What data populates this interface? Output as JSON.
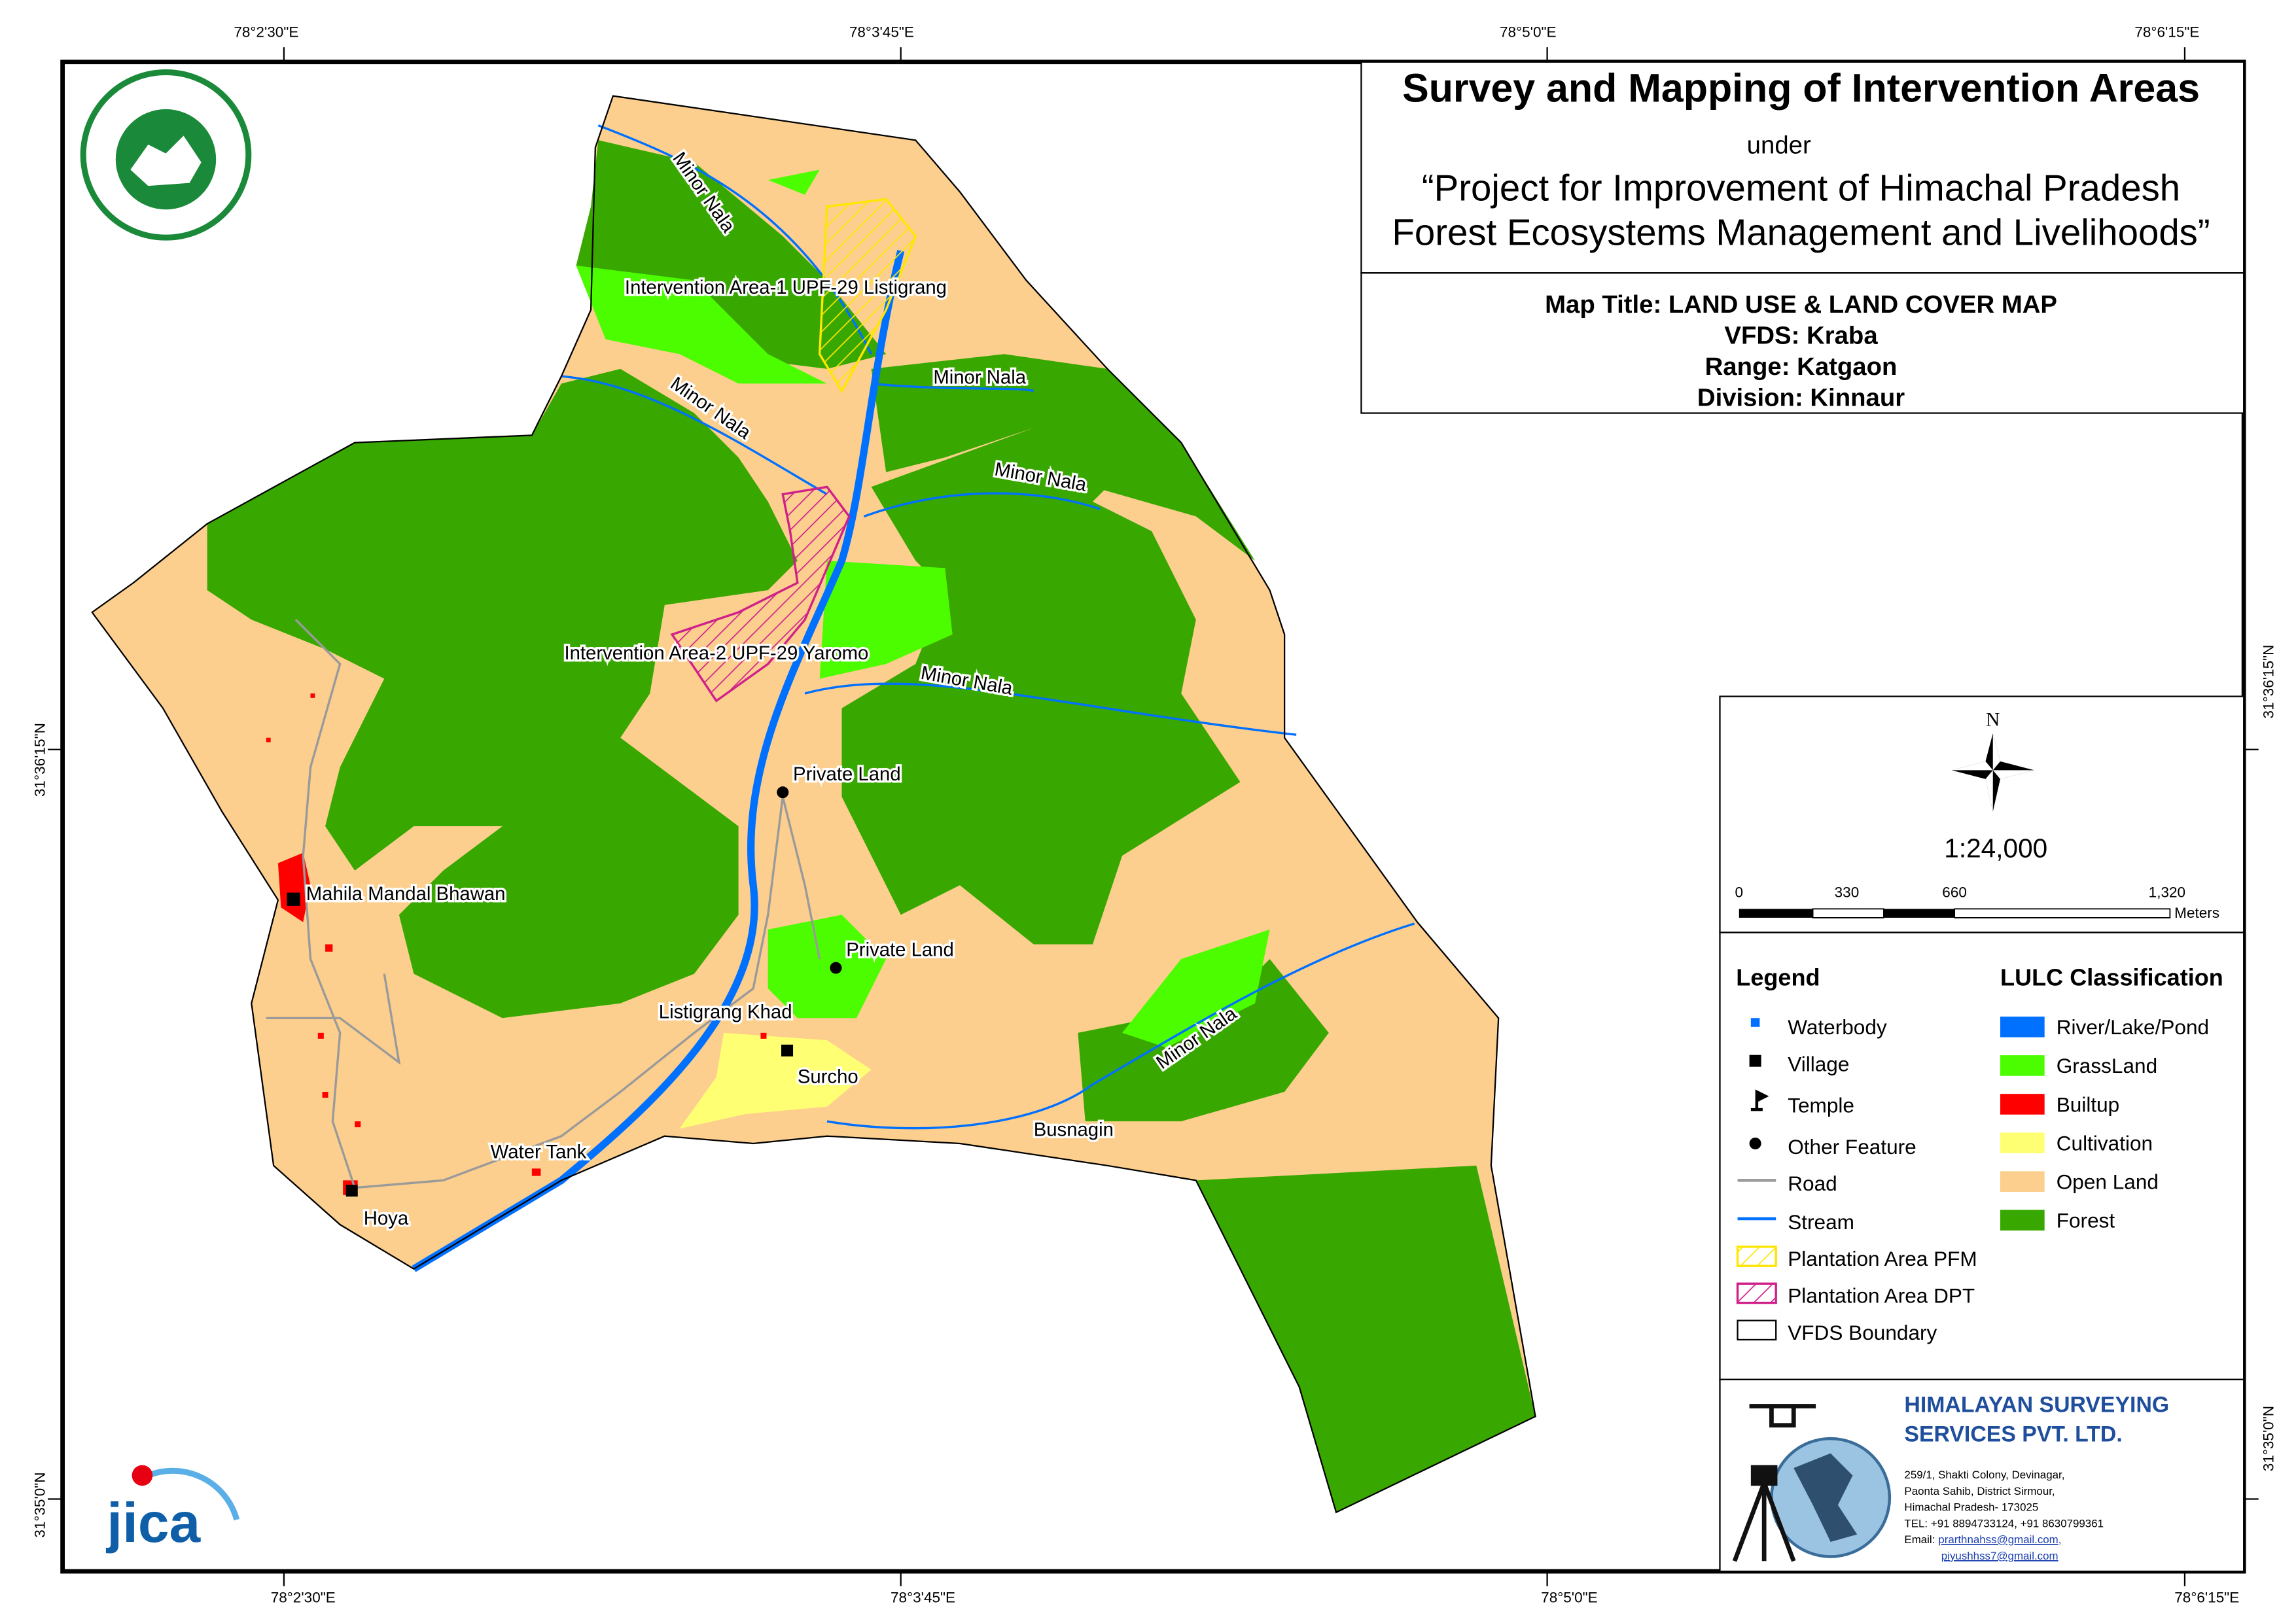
{
  "header": {
    "title": "Survey and Mapping of Intervention Areas",
    "under": "under",
    "project": [
      "“Project for Improvement of Himachal Pradesh",
      "Forest Ecosystems Management and Livelihoods”"
    ]
  },
  "map_info": [
    "Map Title: LAND USE & LAND COVER MAP",
    "VFDS: Kraba",
    "Range: Katgaon",
    "Division: Kinnaur"
  ],
  "coords": {
    "top": [
      "78°2'30\"E",
      "78°3'45\"E",
      "78°5'0\"E",
      "78°6'15\"E"
    ],
    "bottom": [
      "78°2'30\"E",
      "78°3'45\"E",
      "78°5'0\"E",
      "78°6'15\"E"
    ],
    "left": [
      "31°36'15\"N",
      "31°35'0\"N"
    ],
    "right": [
      "31°36'15\"N",
      "31°35'0\"N"
    ]
  },
  "map_labels": [
    "Minor Nala",
    "Intervention Area-1 UPF-29 Listigrang",
    "Minor Nala",
    "Minor Nala",
    "Minor Nala",
    "Intervention Area-2 UPF-29 Yaromo",
    "Minor Nala",
    "Private Land",
    "Mahila Mandal Bhawan",
    "Private Land",
    "Listigrang Khad",
    "Minor Nala",
    "Surcho",
    "Busnagin",
    "Water Tank",
    "Hoya"
  ],
  "north": "N",
  "scale": {
    "ratio": "1:24,000",
    "ticks": [
      "0",
      "330",
      "660",
      "1,320"
    ],
    "unit": "Meters"
  },
  "legend": {
    "title": "Legend",
    "items": [
      "Waterbody",
      "Village",
      "Temple",
      "Other Feature",
      "Road",
      "Stream",
      "Plantation Area PFM",
      "Plantation Area DPT",
      "VFDS Boundary"
    ]
  },
  "lulc": {
    "title": "LULC Classification",
    "items": [
      {
        "label": "River/Lake/Pond",
        "color": "#0070ff"
      },
      {
        "label": "GrassLand",
        "color": "#4cfd00"
      },
      {
        "label": "Builtup",
        "color": "#ff0000"
      },
      {
        "label": "Cultivation",
        "color": "#ffff73"
      },
      {
        "label": "Open Land",
        "color": "#fccf8e"
      },
      {
        "label": "Forest",
        "color": "#38a800"
      }
    ]
  },
  "logo": "jica",
  "company": {
    "name": [
      "HIMALAYAN SURVEYING",
      "SERVICES PVT. LTD."
    ],
    "address": [
      "259/1, Shakti Colony, Devinagar,",
      "Paonta Sahib, District Sirmour,",
      "Himachal Pradesh- 173025",
      "TEL: +91 8894733124, +91 8630799361"
    ],
    "email_label": "Email:",
    "emails": [
      "prarthnahss@gmail.com,",
      "piyushhss7@gmail.com"
    ]
  }
}
